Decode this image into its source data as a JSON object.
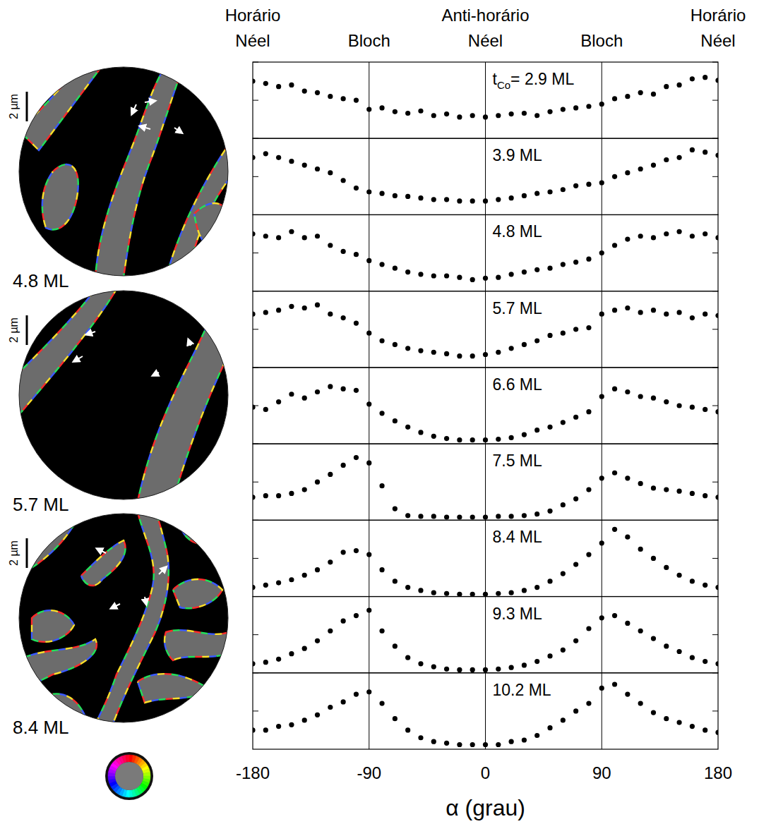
{
  "chart_data": [
    {
      "type": "scatter",
      "label_symbol": "t",
      "label_subscript": "Co",
      "label": "= 2.9 ML",
      "color": "#000000",
      "marker": "circle",
      "grid": true,
      "tick_labels": false,
      "annotations": [
        {
          "x": -180,
          "lines": [
            "Horário",
            "Néel"
          ]
        },
        {
          "x": -90,
          "lines": [
            "Bloch"
          ]
        },
        {
          "x": 0,
          "lines": [
            "Anti-horário",
            "Néel"
          ]
        },
        {
          "x": 90,
          "lines": [
            "Bloch"
          ]
        },
        {
          "x": 180,
          "lines": [
            "Horário",
            "Néel"
          ]
        }
      ],
      "xlim": [
        -180,
        180
      ],
      "xticks": [
        -180,
        -90,
        0,
        90,
        180
      ],
      "ylim": [
        0,
        1
      ],
      "yticks": [
        0.5,
        1
      ],
      "x": [
        -180,
        -170,
        -160,
        -150,
        -140,
        -130,
        -120,
        -110,
        -100,
        -90,
        -80,
        -70,
        -60,
        -50,
        -40,
        -30,
        -20,
        -10,
        0,
        10,
        20,
        30,
        40,
        50,
        60,
        70,
        80,
        90,
        100,
        110,
        120,
        130,
        140,
        150,
        160,
        170,
        180
      ],
      "values": [
        0.75,
        0.72,
        0.68,
        0.7,
        0.62,
        0.6,
        0.55,
        0.52,
        0.5,
        0.38,
        0.4,
        0.35,
        0.33,
        0.36,
        0.3,
        0.32,
        0.28,
        0.3,
        0.28,
        0.3,
        0.32,
        0.33,
        0.3,
        0.35,
        0.38,
        0.4,
        0.42,
        0.45,
        0.52,
        0.55,
        0.6,
        0.58,
        0.68,
        0.7,
        0.78,
        0.8,
        0.76
      ]
    },
    {
      "type": "scatter",
      "label": "3.9 ML",
      "color": "#000000",
      "marker": "circle",
      "grid": true,
      "tick_labels": false,
      "xlim": [
        -180,
        180
      ],
      "xticks": [
        -180,
        -90,
        0,
        90,
        180
      ],
      "ylim": [
        0,
        1
      ],
      "yticks": [
        0.5,
        1
      ],
      "x": [
        -180,
        -170,
        -160,
        -150,
        -140,
        -130,
        -120,
        -110,
        -100,
        -90,
        -80,
        -70,
        -60,
        -50,
        -40,
        -30,
        -20,
        -10,
        0,
        10,
        20,
        30,
        40,
        50,
        60,
        70,
        80,
        90,
        100,
        110,
        120,
        130,
        140,
        150,
        160,
        170,
        180
      ],
      "values": [
        0.75,
        0.8,
        0.75,
        0.7,
        0.65,
        0.6,
        0.55,
        0.45,
        0.35,
        0.3,
        0.28,
        0.25,
        0.24,
        0.22,
        0.2,
        0.2,
        0.18,
        0.18,
        0.18,
        0.2,
        0.22,
        0.25,
        0.28,
        0.3,
        0.33,
        0.38,
        0.4,
        0.42,
        0.5,
        0.55,
        0.6,
        0.65,
        0.72,
        0.75,
        0.85,
        0.82,
        0.78
      ]
    },
    {
      "type": "scatter",
      "label": "4.8 ML",
      "color": "#000000",
      "marker": "circle",
      "grid": true,
      "tick_labels": false,
      "xlim": [
        -180,
        180
      ],
      "xticks": [
        -180,
        -90,
        0,
        90,
        180
      ],
      "ylim": [
        0,
        1
      ],
      "yticks": [
        0.5,
        1
      ],
      "x": [
        -180,
        -170,
        -160,
        -150,
        -140,
        -130,
        -120,
        -110,
        -100,
        -90,
        -80,
        -70,
        -60,
        -50,
        -40,
        -30,
        -20,
        -10,
        0,
        10,
        20,
        30,
        40,
        50,
        60,
        70,
        80,
        90,
        100,
        110,
        120,
        130,
        140,
        150,
        160,
        170,
        180
      ],
      "values": [
        0.75,
        0.72,
        0.7,
        0.78,
        0.7,
        0.72,
        0.6,
        0.52,
        0.48,
        0.4,
        0.35,
        0.3,
        0.25,
        0.22,
        0.2,
        0.2,
        0.18,
        0.15,
        0.17,
        0.18,
        0.22,
        0.25,
        0.28,
        0.3,
        0.35,
        0.38,
        0.42,
        0.5,
        0.6,
        0.68,
        0.72,
        0.7,
        0.75,
        0.78,
        0.72,
        0.75,
        0.7
      ]
    },
    {
      "type": "scatter",
      "label": "5.7 ML",
      "color": "#000000",
      "marker": "circle",
      "grid": true,
      "tick_labels": false,
      "xlim": [
        -180,
        180
      ],
      "xticks": [
        -180,
        -90,
        0,
        90,
        180
      ],
      "ylim": [
        0,
        1
      ],
      "yticks": [
        0.5,
        1
      ],
      "x": [
        -180,
        -170,
        -160,
        -150,
        -140,
        -130,
        -120,
        -110,
        -100,
        -90,
        -80,
        -70,
        -60,
        -50,
        -40,
        -30,
        -20,
        -10,
        0,
        10,
        20,
        30,
        40,
        50,
        60,
        70,
        80,
        90,
        100,
        110,
        120,
        130,
        140,
        150,
        160,
        170,
        180
      ],
      "values": [
        0.7,
        0.72,
        0.75,
        0.8,
        0.78,
        0.82,
        0.7,
        0.65,
        0.58,
        0.45,
        0.35,
        0.3,
        0.25,
        0.22,
        0.2,
        0.18,
        0.15,
        0.15,
        0.17,
        0.2,
        0.25,
        0.3,
        0.35,
        0.42,
        0.45,
        0.5,
        0.52,
        0.7,
        0.75,
        0.78,
        0.72,
        0.75,
        0.7,
        0.72,
        0.65,
        0.7,
        0.68
      ]
    },
    {
      "type": "scatter",
      "label": "6.6 ML",
      "color": "#000000",
      "marker": "circle",
      "grid": true,
      "tick_labels": false,
      "xlim": [
        -180,
        180
      ],
      "xticks": [
        -180,
        -90,
        0,
        90,
        180
      ],
      "ylim": [
        0,
        1
      ],
      "yticks": [
        0.5,
        1
      ],
      "x": [
        -180,
        -170,
        -160,
        -150,
        -140,
        -130,
        -120,
        -110,
        -100,
        -90,
        -80,
        -70,
        -60,
        -50,
        -40,
        -30,
        -20,
        -10,
        0,
        10,
        20,
        30,
        40,
        50,
        60,
        70,
        80,
        90,
        100,
        110,
        120,
        130,
        140,
        150,
        160,
        170,
        180
      ],
      "values": [
        0.48,
        0.45,
        0.55,
        0.65,
        0.6,
        0.68,
        0.75,
        0.72,
        0.7,
        0.52,
        0.4,
        0.3,
        0.22,
        0.15,
        0.1,
        0.07,
        0.05,
        0.05,
        0.05,
        0.06,
        0.08,
        0.12,
        0.18,
        0.22,
        0.28,
        0.35,
        0.42,
        0.62,
        0.72,
        0.68,
        0.62,
        0.6,
        0.55,
        0.5,
        0.48,
        0.45,
        0.42
      ]
    },
    {
      "type": "scatter",
      "label": "7.5 ML",
      "color": "#000000",
      "marker": "circle",
      "grid": true,
      "tick_labels": false,
      "xlim": [
        -180,
        180
      ],
      "xticks": [
        -180,
        -90,
        0,
        90,
        180
      ],
      "ylim": [
        0,
        1
      ],
      "yticks": [
        0.5,
        1
      ],
      "x": [
        -180,
        -170,
        -160,
        -150,
        -140,
        -130,
        -120,
        -110,
        -100,
        -90,
        -80,
        -70,
        -60,
        -50,
        -40,
        -30,
        -20,
        -10,
        0,
        10,
        20,
        30,
        40,
        50,
        60,
        70,
        80,
        90,
        100,
        110,
        120,
        130,
        140,
        150,
        160,
        170,
        180
      ],
      "values": [
        0.3,
        0.32,
        0.32,
        0.35,
        0.4,
        0.5,
        0.6,
        0.72,
        0.82,
        0.75,
        0.45,
        0.15,
        0.06,
        0.05,
        0.05,
        0.04,
        0.04,
        0.04,
        0.04,
        0.05,
        0.05,
        0.06,
        0.08,
        0.12,
        0.2,
        0.28,
        0.4,
        0.55,
        0.62,
        0.55,
        0.48,
        0.42,
        0.4,
        0.38,
        0.35,
        0.32,
        0.3
      ]
    },
    {
      "type": "scatter",
      "label": "8.4 ML",
      "color": "#000000",
      "marker": "circle",
      "grid": true,
      "tick_labels": false,
      "xlim": [
        -180,
        180
      ],
      "xticks": [
        -180,
        -90,
        0,
        90,
        180
      ],
      "ylim": [
        0,
        1
      ],
      "yticks": [
        0.5,
        1
      ],
      "x": [
        -180,
        -170,
        -160,
        -150,
        -140,
        -130,
        -120,
        -110,
        -100,
        -90,
        -80,
        -70,
        -60,
        -50,
        -40,
        -30,
        -20,
        -10,
        0,
        10,
        20,
        30,
        40,
        50,
        60,
        70,
        80,
        90,
        100,
        110,
        120,
        130,
        140,
        150,
        160,
        170,
        180
      ],
      "values": [
        0.12,
        0.15,
        0.18,
        0.22,
        0.28,
        0.35,
        0.45,
        0.58,
        0.6,
        0.55,
        0.35,
        0.2,
        0.12,
        0.08,
        0.05,
        0.04,
        0.03,
        0.03,
        0.03,
        0.04,
        0.05,
        0.08,
        0.12,
        0.2,
        0.3,
        0.42,
        0.55,
        0.7,
        0.88,
        0.78,
        0.62,
        0.5,
        0.38,
        0.28,
        0.2,
        0.15,
        0.12
      ]
    },
    {
      "type": "scatter",
      "label": "9.3 ML",
      "color": "#000000",
      "marker": "circle",
      "grid": true,
      "tick_labels": false,
      "xlim": [
        -180,
        180
      ],
      "xticks": [
        -180,
        -90,
        0,
        90,
        180
      ],
      "ylim": [
        0,
        1
      ],
      "yticks": [
        0.5,
        1
      ],
      "x": [
        -180,
        -170,
        -160,
        -150,
        -140,
        -130,
        -120,
        -110,
        -100,
        -90,
        -80,
        -70,
        -60,
        -50,
        -40,
        -30,
        -20,
        -10,
        0,
        10,
        20,
        30,
        40,
        50,
        60,
        70,
        80,
        90,
        100,
        110,
        120,
        130,
        140,
        150,
        160,
        170,
        180
      ],
      "values": [
        0.12,
        0.14,
        0.18,
        0.25,
        0.32,
        0.42,
        0.55,
        0.68,
        0.75,
        0.82,
        0.55,
        0.35,
        0.2,
        0.12,
        0.08,
        0.05,
        0.04,
        0.04,
        0.04,
        0.05,
        0.07,
        0.1,
        0.15,
        0.22,
        0.3,
        0.42,
        0.58,
        0.72,
        0.75,
        0.65,
        0.55,
        0.45,
        0.35,
        0.28,
        0.2,
        0.15,
        0.12
      ]
    },
    {
      "type": "scatter",
      "label": "10.2 ML",
      "xlabel": "α (grau)",
      "color": "#000000",
      "marker": "circle",
      "grid": true,
      "tick_labels": "x",
      "xlim": [
        -180,
        180
      ],
      "xticks": [
        -180,
        -90,
        0,
        90,
        180
      ],
      "ylim": [
        0,
        1
      ],
      "yticks": [
        0.5,
        1
      ],
      "x": [
        -180,
        -170,
        -160,
        -150,
        -140,
        -130,
        -120,
        -110,
        -100,
        -90,
        -80,
        -70,
        -60,
        -50,
        -40,
        -30,
        -20,
        -10,
        0,
        10,
        20,
        30,
        40,
        50,
        60,
        70,
        80,
        90,
        100,
        110,
        120,
        130,
        140,
        150,
        160,
        170,
        180
      ],
      "values": [
        0.25,
        0.25,
        0.3,
        0.32,
        0.38,
        0.45,
        0.55,
        0.62,
        0.72,
        0.75,
        0.6,
        0.4,
        0.25,
        0.15,
        0.1,
        0.08,
        0.06,
        0.06,
        0.06,
        0.06,
        0.1,
        0.12,
        0.18,
        0.28,
        0.38,
        0.5,
        0.6,
        0.8,
        0.85,
        0.72,
        0.6,
        0.48,
        0.4,
        0.35,
        0.3,
        0.25,
        0.22
      ]
    }
  ],
  "images": [
    {
      "label": "4.8 ML",
      "scale_bar": "2 µm"
    },
    {
      "label": "5.7 ML",
      "scale_bar": "2 µm"
    },
    {
      "label": "8.4 ML",
      "scale_bar": "2 µm"
    }
  ]
}
